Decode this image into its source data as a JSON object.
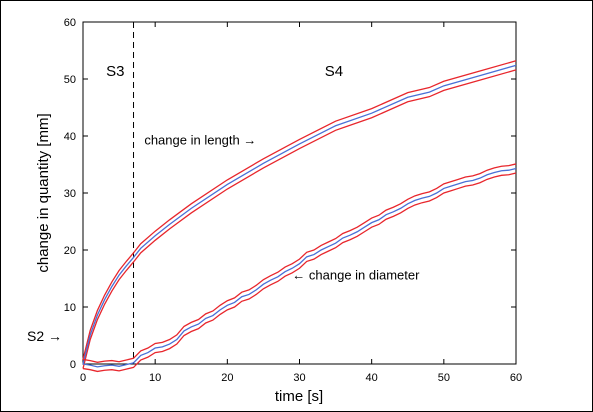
{
  "chart_data": {
    "type": "line",
    "title": "",
    "xlabel": "time [s]",
    "ylabel": "change in quantity [mm]",
    "xlim": [
      0,
      60
    ],
    "ylim": [
      0,
      60
    ],
    "x_ticks": [
      0,
      10,
      20,
      30,
      40,
      50,
      60
    ],
    "y_ticks": [
      0,
      10,
      20,
      30,
      40,
      50,
      60
    ],
    "grid": false,
    "legend": "none",
    "phase_boundary_x": 7,
    "series": [
      {
        "color": "#4a6fd6",
        "band_color": "#e8262c",
        "band_halfwidth": 0.8,
        "x": [
          0,
          1,
          2,
          3,
          4,
          5,
          6,
          7,
          8,
          10,
          12,
          15,
          20,
          25,
          30,
          35,
          40,
          45,
          48,
          50,
          55,
          60
        ],
        "y": [
          0,
          5.1,
          8.6,
          11.3,
          13.6,
          15.6,
          17.2,
          18.7,
          20.3,
          22.5,
          24.5,
          27.3,
          31.5,
          35.2,
          38.6,
          41.8,
          44.0,
          46.8,
          47.7,
          48.8,
          50.6,
          52.4
        ]
      },
      {
        "color": "#4a6fd6",
        "band_color": "#e8262c",
        "band_halfwidth": 0.8,
        "x": [
          0,
          1,
          2,
          3,
          4,
          5,
          6,
          7,
          8,
          9,
          10,
          11,
          12,
          13,
          14,
          15,
          16,
          17,
          18,
          19,
          20,
          21,
          22,
          23,
          24,
          25,
          26,
          27,
          28,
          29,
          30,
          31,
          32,
          33,
          34,
          35,
          36,
          37,
          38,
          39,
          40,
          41,
          42,
          43,
          44,
          45,
          46,
          47,
          48,
          49,
          50,
          51,
          52,
          53,
          54,
          55,
          56,
          57,
          58,
          59,
          60
        ],
        "y": [
          0,
          -0.2,
          -0.5,
          -0.3,
          -0.2,
          -0.4,
          -0.1,
          0.2,
          1.5,
          2.0,
          2.8,
          3.0,
          3.5,
          4.3,
          5.8,
          6.5,
          7.0,
          8.0,
          8.5,
          9.5,
          10.3,
          10.8,
          11.8,
          12.2,
          13.0,
          14.0,
          14.7,
          15.3,
          16.2,
          16.8,
          17.6,
          18.8,
          19.2,
          20.0,
          20.6,
          21.2,
          22.1,
          22.6,
          23.2,
          24.0,
          24.8,
          25.3,
          26.2,
          26.7,
          27.3,
          28.1,
          28.7,
          29.1,
          29.4,
          30.0,
          30.8,
          31.2,
          31.6,
          32.0,
          32.2,
          32.6,
          33.2,
          33.6,
          33.9,
          34.0,
          34.3
        ]
      }
    ],
    "annotations": [
      {
        "text": "S3",
        "x": 3.2,
        "y": 50.5
      },
      {
        "text": "S4",
        "x": 33.5,
        "y": 50.5
      },
      {
        "text": "change in length →",
        "x": 8.5,
        "y": 38.5
      },
      {
        "text": "← change in diameter",
        "x": 29.0,
        "y": 14.8
      }
    ],
    "left_annotation": "S2 →"
  }
}
